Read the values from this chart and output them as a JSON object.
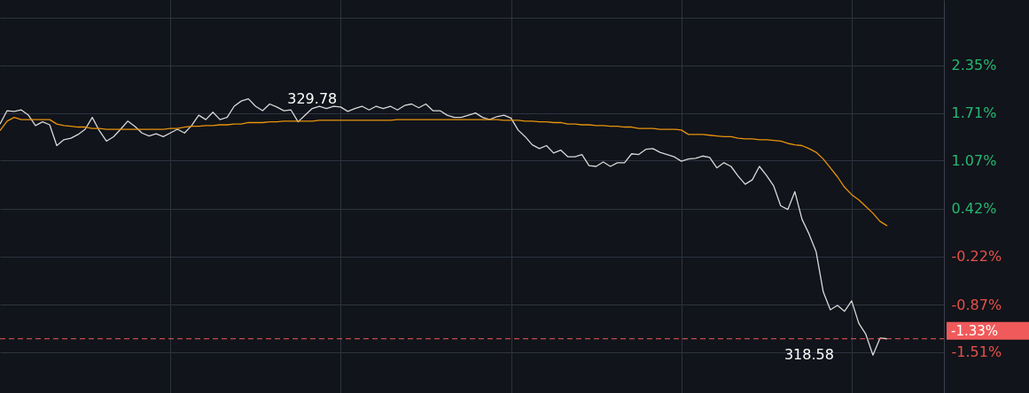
{
  "chart_data": {
    "type": "line",
    "categories": [
      null,
      null,
      null,
      null,
      null,
      null,
      null,
      null,
      null,
      null,
      null,
      null,
      null,
      null,
      null,
      null,
      null,
      null,
      null,
      null,
      null,
      null,
      null,
      null,
      null,
      null,
      null,
      null,
      null,
      null,
      null,
      null,
      null,
      null,
      null,
      null,
      null,
      null,
      null,
      null,
      null,
      null,
      null,
      null,
      null,
      null,
      null,
      null,
      null,
      null,
      null,
      null,
      null,
      null,
      null,
      null,
      null,
      null,
      null,
      null,
      null,
      null,
      null,
      null,
      null,
      null,
      null,
      null,
      null,
      null,
      null,
      null,
      null,
      null,
      null,
      null,
      null,
      null,
      null,
      null,
      null,
      null,
      null,
      null,
      null,
      null,
      null,
      null,
      null,
      null,
      null,
      null,
      null,
      null,
      null,
      null,
      null,
      null,
      null,
      null,
      null,
      null,
      null,
      null,
      null,
      null,
      null,
      null,
      null,
      null,
      null,
      null,
      null,
      null,
      null,
      null,
      null,
      null,
      null,
      null,
      null,
      null,
      null,
      null,
      null,
      null,
      null,
      null,
      null,
      null,
      null,
      null,
      null,
      null
    ],
    "series": [
      {
        "color": "#d8d8d8",
        "values": [
          1.56,
          1.74,
          1.73,
          1.75,
          1.68,
          1.54,
          1.59,
          1.55,
          1.27,
          1.35,
          1.37,
          1.42,
          1.49,
          1.65,
          1.47,
          1.33,
          1.39,
          1.49,
          1.6,
          1.53,
          1.44,
          1.4,
          1.43,
          1.39,
          1.44,
          1.49,
          1.44,
          1.54,
          1.68,
          1.62,
          1.72,
          1.62,
          1.65,
          1.8,
          1.87,
          1.9,
          1.8,
          1.74,
          1.83,
          1.79,
          1.74,
          1.75,
          1.59,
          1.68,
          1.77,
          1.8,
          1.77,
          1.8,
          1.79,
          1.73,
          1.77,
          1.8,
          1.75,
          1.8,
          1.77,
          1.8,
          1.75,
          1.81,
          1.83,
          1.78,
          1.83,
          1.74,
          1.74,
          1.68,
          1.65,
          1.65,
          1.68,
          1.71,
          1.65,
          1.62,
          1.66,
          1.68,
          1.64,
          1.48,
          1.39,
          1.28,
          1.23,
          1.27,
          1.17,
          1.21,
          1.12,
          1.12,
          1.15,
          1.0,
          0.99,
          1.05,
          0.99,
          1.04,
          1.04,
          1.16,
          1.15,
          1.22,
          1.23,
          1.18,
          1.15,
          1.12,
          1.06,
          1.09,
          1.1,
          1.13,
          1.11,
          0.97,
          1.04,
          0.99,
          0.86,
          0.75,
          0.81,
          0.99,
          0.87,
          0.73,
          0.46,
          0.41,
          0.65,
          0.28,
          0.08,
          -0.16,
          -0.7,
          -0.94,
          -0.88,
          -0.96,
          -0.82,
          -1.12,
          -1.27,
          -1.55,
          -1.32,
          -1.33,
          null,
          null,
          null,
          null,
          null,
          null,
          null,
          null
        ]
      },
      {
        "color": "#e8930c",
        "values": [
          1.47,
          1.6,
          1.65,
          1.62,
          1.62,
          1.62,
          1.62,
          1.62,
          1.56,
          1.54,
          1.53,
          1.52,
          1.52,
          1.5,
          1.5,
          1.49,
          1.49,
          1.49,
          1.49,
          1.49,
          1.49,
          1.49,
          1.49,
          1.49,
          1.5,
          1.5,
          1.52,
          1.53,
          1.53,
          1.54,
          1.54,
          1.55,
          1.55,
          1.56,
          1.56,
          1.58,
          1.58,
          1.58,
          1.59,
          1.59,
          1.6,
          1.6,
          1.6,
          1.6,
          1.6,
          1.61,
          1.61,
          1.61,
          1.61,
          1.61,
          1.61,
          1.61,
          1.61,
          1.61,
          1.61,
          1.61,
          1.62,
          1.62,
          1.62,
          1.62,
          1.62,
          1.62,
          1.62,
          1.62,
          1.62,
          1.62,
          1.62,
          1.62,
          1.62,
          1.62,
          1.62,
          1.61,
          1.61,
          1.61,
          1.6,
          1.6,
          1.59,
          1.59,
          1.58,
          1.58,
          1.56,
          1.56,
          1.55,
          1.55,
          1.54,
          1.54,
          1.53,
          1.53,
          1.52,
          1.52,
          1.5,
          1.5,
          1.5,
          1.49,
          1.49,
          1.49,
          1.48,
          1.42,
          1.42,
          1.42,
          1.41,
          1.4,
          1.39,
          1.39,
          1.37,
          1.36,
          1.36,
          1.35,
          1.35,
          1.34,
          1.33,
          1.3,
          1.28,
          1.27,
          1.23,
          1.18,
          1.09,
          0.97,
          0.85,
          0.71,
          0.61,
          0.54,
          0.45,
          0.36,
          0.25,
          0.19,
          null,
          null,
          null,
          null,
          null,
          null,
          null,
          null
        ]
      }
    ],
    "ylim": [
      -2.06,
      3.23
    ],
    "yticks": [
      {
        "value": 2.99,
        "label": null
      },
      {
        "value": 2.35,
        "label": "2.35%"
      },
      {
        "value": 1.71,
        "label": "1.71%"
      },
      {
        "value": 1.07,
        "label": "1.07%"
      },
      {
        "value": 0.42,
        "label": "0.42%"
      },
      {
        "value": -0.22,
        "label": "-0.22%"
      },
      {
        "value": -0.87,
        "label": "-0.87%"
      },
      {
        "value": -1.51,
        "label": "-1.51%"
      }
    ],
    "tick_labels": "y",
    "grid": true,
    "line_style": "solid",
    "annotations": [
      "329.78",
      "318.58"
    ],
    "ref_lines": [
      {
        "axis": "y",
        "value": -1.33,
        "label": "-1.33%",
        "color": "#f05a5a",
        "line_style": "dashed"
      }
    ]
  }
}
